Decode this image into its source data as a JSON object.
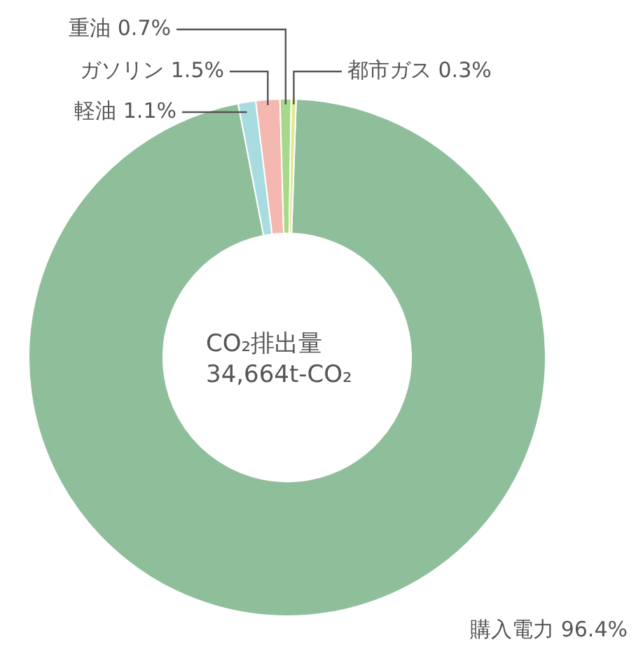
{
  "chart_data": {
    "type": "donut",
    "categories": [
      "購入電力",
      "軽油",
      "ガソリン",
      "重油",
      "都市ガス"
    ],
    "values": [
      96.4,
      1.1,
      1.5,
      0.7,
      0.3
    ],
    "value_labels": [
      "96.4%",
      "1.1%",
      "1.5%",
      "0.7%",
      "0.3%"
    ],
    "colors": [
      "#8fbf9a",
      "#a8dce0",
      "#f4b8b0",
      "#a8d88a",
      "#e0e890"
    ],
    "annotations": [
      "CO₂排出量",
      "34,664t-CO₂"
    ],
    "legend": false
  }
}
